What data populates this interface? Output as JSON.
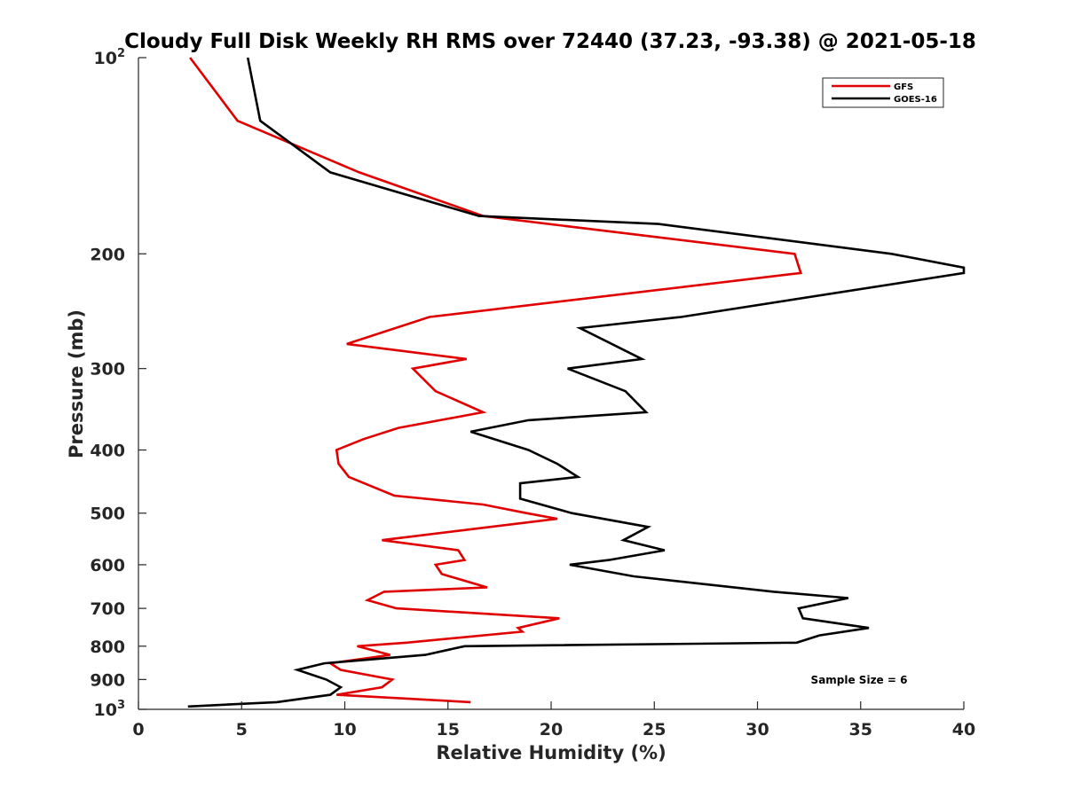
{
  "chart_data": {
    "type": "line",
    "title": "Cloudy Full Disk Weekly RH RMS over 72440 (37.23, -93.38) @ 2021-05-18",
    "xlabel": "Relative Humidity (%)",
    "ylabel": "Pressure (mb)",
    "xlim": [
      0,
      40
    ],
    "ylim": [
      100,
      1000
    ],
    "y_scale": "log",
    "y_reversed": true,
    "grid": false,
    "legend_position": "top-right",
    "x_ticks": [
      "0",
      "5",
      "10",
      "15",
      "20",
      "25",
      "30",
      "35",
      "40"
    ],
    "y_ticks": [
      {
        "value": 100,
        "base": "10",
        "exp": "2"
      },
      {
        "value": 200,
        "label": "200"
      },
      {
        "value": 300,
        "label": "300"
      },
      {
        "value": 400,
        "label": "400"
      },
      {
        "value": 500,
        "label": "500"
      },
      {
        "value": 600,
        "label": "600"
      },
      {
        "value": 700,
        "label": "700"
      },
      {
        "value": 800,
        "label": "800"
      },
      {
        "value": 900,
        "label": "900"
      },
      {
        "value": 1000,
        "base": "10",
        "exp": "3"
      }
    ],
    "series": [
      {
        "name": "GFS",
        "color": "#e00000",
        "points": [
          [
            2.5,
            100
          ],
          [
            4.8,
            125
          ],
          [
            10.7,
            150
          ],
          [
            16.7,
            175
          ],
          [
            31.8,
            200
          ],
          [
            32.1,
            214
          ],
          [
            14.1,
            250
          ],
          [
            10.1,
            275
          ],
          [
            15.9,
            290
          ],
          [
            13.3,
            300
          ],
          [
            14.4,
            325
          ],
          [
            16.7,
            350
          ],
          [
            12.6,
            370
          ],
          [
            10.9,
            385
          ],
          [
            9.6,
            400
          ],
          [
            9.7,
            420
          ],
          [
            10.2,
            440
          ],
          [
            12.4,
            470
          ],
          [
            16.7,
            485
          ],
          [
            18.8,
            500
          ],
          [
            20.3,
            510
          ],
          [
            11.8,
            550
          ],
          [
            15.5,
            570
          ],
          [
            15.8,
            590
          ],
          [
            14.4,
            600
          ],
          [
            14.7,
            620
          ],
          [
            16.9,
            650
          ],
          [
            11.9,
            660
          ],
          [
            11.1,
            680
          ],
          [
            12.5,
            700
          ],
          [
            20.4,
            725
          ],
          [
            18.4,
            750
          ],
          [
            18.6,
            760
          ],
          [
            13.0,
            790
          ],
          [
            10.6,
            800
          ],
          [
            12.2,
            825
          ],
          [
            9.3,
            850
          ],
          [
            9.8,
            870
          ],
          [
            12.3,
            900
          ],
          [
            11.8,
            925
          ],
          [
            11.8,
            925
          ],
          [
            9.6,
            950
          ],
          [
            16.1,
            975
          ]
        ]
      },
      {
        "name": "GOES-16",
        "color": "#000000",
        "points": [
          [
            5.3,
            100
          ],
          [
            5.9,
            125
          ],
          [
            9.3,
            150
          ],
          [
            16.5,
            175
          ],
          [
            25.2,
            180
          ],
          [
            36.5,
            200
          ],
          [
            40.0,
            210
          ],
          [
            40.0,
            214
          ],
          [
            26.3,
            250
          ],
          [
            21.4,
            260
          ],
          [
            24.4,
            290
          ],
          [
            20.8,
            300
          ],
          [
            23.6,
            325
          ],
          [
            24.6,
            350
          ],
          [
            18.9,
            360
          ],
          [
            16.1,
            375
          ],
          [
            18.9,
            400
          ],
          [
            20.3,
            420
          ],
          [
            21.3,
            440
          ],
          [
            18.5,
            450
          ],
          [
            18.5,
            475
          ],
          [
            21.0,
            500
          ],
          [
            24.7,
            525
          ],
          [
            23.5,
            550
          ],
          [
            25.5,
            570
          ],
          [
            22.8,
            590
          ],
          [
            20.9,
            600
          ],
          [
            24.0,
            625
          ],
          [
            30.8,
            660
          ],
          [
            34.4,
            675
          ],
          [
            32.0,
            700
          ],
          [
            32.2,
            725
          ],
          [
            35.4,
            750
          ],
          [
            33.0,
            770
          ],
          [
            31.9,
            790
          ],
          [
            15.8,
            800
          ],
          [
            13.9,
            825
          ],
          [
            9.0,
            850
          ],
          [
            7.7,
            870
          ],
          [
            9.1,
            900
          ],
          [
            9.8,
            925
          ],
          [
            9.3,
            950
          ],
          [
            6.7,
            975
          ],
          [
            2.4,
            990
          ]
        ]
      }
    ],
    "annotations": [
      {
        "text": "Sample Size = 6"
      }
    ]
  }
}
